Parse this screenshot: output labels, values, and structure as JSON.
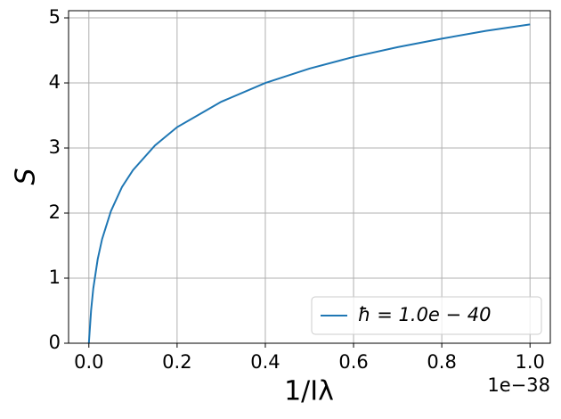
{
  "chart_data": {
    "type": "line",
    "x_label": "1/Iλ",
    "y_label": "S",
    "x_offset_label": "1e−38",
    "x": [
      0,
      0.005,
      0.01,
      0.02,
      0.03,
      0.05,
      0.075,
      0.1,
      0.15,
      0.2,
      0.3,
      0.4,
      0.5,
      0.6,
      0.7,
      0.8,
      0.9,
      1.0
    ],
    "series": [
      {
        "name": "ħ = 1.0e − 40",
        "color": "#1f77b4",
        "values": [
          0,
          0.5,
          0.84,
          1.29,
          1.6,
          2.03,
          2.4,
          2.66,
          3.04,
          3.32,
          3.71,
          4.0,
          4.22,
          4.4,
          4.55,
          4.68,
          4.8,
          4.9
        ]
      }
    ],
    "xlim": [
      -0.046,
      1.046
    ],
    "ylim": [
      0,
      5.11
    ],
    "xticks": [
      {
        "value": 0,
        "label": "0.0"
      },
      0.2,
      0.4,
      0.6,
      0.8,
      {
        "value": 1,
        "label": "1.0"
      }
    ],
    "yticks": [
      0,
      1,
      2,
      3,
      4,
      5
    ],
    "grid": true,
    "legend": "lower right"
  }
}
